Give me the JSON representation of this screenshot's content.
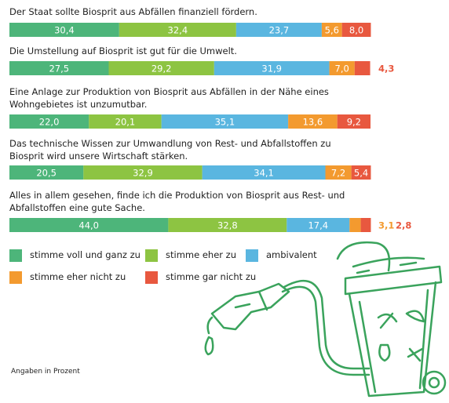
{
  "chart_data": {
    "type": "bar",
    "orientation": "horizontal",
    "stacked": true,
    "categories": [
      "Der Staat sollte Biosprit aus Abfällen finanziell fördern.",
      "Die Umstellung auf Biosprit ist gut für die Umwelt.",
      "Eine Anlage zur Produktion von Biosprit aus Abfällen in der Nähe eines Wohngebietes ist unzumutbar.",
      "Das technische Wissen zur Umwandlung von Rest- und Abfallstoffen zu Biosprit wird unsere Wirtschaft stärken.",
      "Alles in allem gesehen, finde ich die Produktion von Biosprit aus Rest- und Abfallstoffen eine gute Sache."
    ],
    "xlim": [
      0,
      100
    ],
    "series": [
      {
        "name": "stimme voll und ganz zu",
        "color": "#4db57a",
        "values": [
          30.4,
          27.5,
          22.0,
          20.5,
          44.0
        ],
        "value_labels": [
          "30,4",
          "27,5",
          "22,0",
          "20,5",
          "44,0"
        ]
      },
      {
        "name": "stimme eher zu",
        "color": "#8dc442",
        "values": [
          32.4,
          29.2,
          20.1,
          32.9,
          32.8
        ],
        "value_labels": [
          "32,4",
          "29,2",
          "20,1",
          "32,9",
          "32,8"
        ]
      },
      {
        "name": "ambivalent",
        "color": "#5ab6e0",
        "values": [
          23.7,
          31.9,
          35.1,
          34.1,
          17.4
        ],
        "value_labels": [
          "23,7",
          "31,9",
          "35,1",
          "34,1",
          "17,4"
        ]
      },
      {
        "name": "stimme eher nicht zu",
        "color": "#f39a2f",
        "values": [
          5.6,
          7.0,
          13.6,
          7.2,
          3.1
        ],
        "value_labels": [
          "5,6",
          "7,0",
          "13,6",
          "7,2",
          "3,1"
        ]
      },
      {
        "name": "stimme gar nicht zu",
        "color": "#e8583f",
        "values": [
          8.0,
          4.3,
          9.2,
          5.4,
          2.8
        ],
        "value_labels": [
          "8,0",
          "4,3",
          "9,2",
          "5,4",
          "2,8"
        ]
      }
    ],
    "note": "Angaben in Prozent"
  }
}
